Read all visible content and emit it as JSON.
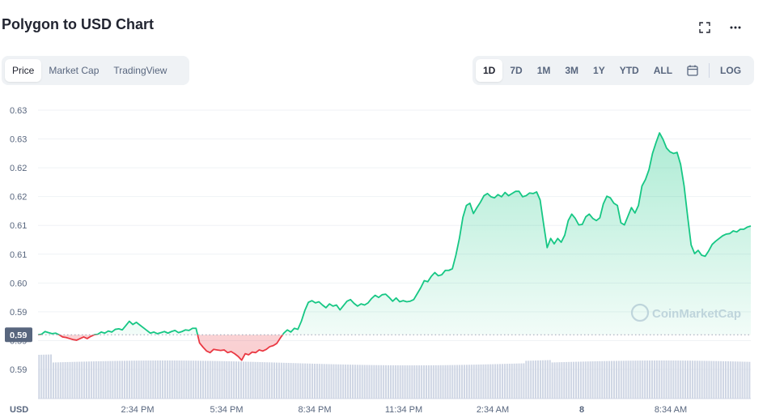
{
  "header": {
    "title": "Polygon to USD Chart",
    "fullscreen_icon": "expand-icon",
    "more_icon": "more-horizontal-icon"
  },
  "view_tabs": [
    {
      "label": "Price",
      "active": true
    },
    {
      "label": "Market Cap",
      "active": false
    },
    {
      "label": "TradingView",
      "active": false
    }
  ],
  "range_tabs": [
    {
      "label": "1D",
      "active": true
    },
    {
      "label": "7D",
      "active": false
    },
    {
      "label": "1M",
      "active": false
    },
    {
      "label": "3M",
      "active": false
    },
    {
      "label": "1Y",
      "active": false
    },
    {
      "label": "YTD",
      "active": false
    },
    {
      "label": "ALL",
      "active": false
    }
  ],
  "calendar_icon": "calendar-icon",
  "log_label": "LOG",
  "watermark": "CoinMarketCap",
  "colors": {
    "up": "#16c784",
    "down": "#ea3943",
    "volume": "#cfd6e4",
    "grid": "#eff2f5",
    "text": "#58667e"
  },
  "chart_data": {
    "type": "area",
    "currency_label": "USD",
    "y_tick_labels": [
      "0.63",
      "0.63",
      "0.62",
      "0.62",
      "0.61",
      "0.61",
      "0.60",
      "0.59",
      "0.59",
      "0.59"
    ],
    "x_tick_labels": [
      "2:34 PM",
      "5:34 PM",
      "8:34 PM",
      "11:34 PM",
      "2:34 AM",
      "8",
      "8:34 AM"
    ],
    "ylim": [
      0.587,
      0.634
    ],
    "reference_price": 0.5925,
    "reference_label": "0.59",
    "series": [
      {
        "values": [
          0.5925,
          0.5926,
          0.5931,
          0.5929,
          0.5927,
          0.5928,
          0.5925,
          0.5921,
          0.592,
          0.5918,
          0.5916,
          0.5915,
          0.5918,
          0.5921,
          0.5918,
          0.5922,
          0.5925,
          0.5926,
          0.593,
          0.5928,
          0.5932,
          0.593,
          0.5935,
          0.5936,
          0.5934,
          0.5942,
          0.595,
          0.5944,
          0.5948,
          0.5943,
          0.5938,
          0.5933,
          0.5928,
          0.593,
          0.5927,
          0.5929,
          0.5931,
          0.5928,
          0.5931,
          0.5933,
          0.5929,
          0.5931,
          0.5934,
          0.5933,
          0.5937,
          0.5937,
          0.591,
          0.5902,
          0.5895,
          0.5892,
          0.5898,
          0.5897,
          0.5896,
          0.5897,
          0.5892,
          0.5894,
          0.589,
          0.5885,
          0.5878,
          0.589,
          0.5888,
          0.5893,
          0.5892,
          0.5897,
          0.5895,
          0.5898,
          0.5903,
          0.5905,
          0.5909,
          0.5919,
          0.5928,
          0.5934,
          0.593,
          0.5937,
          0.5935,
          0.595,
          0.597,
          0.5985,
          0.5988,
          0.5984,
          0.5986,
          0.598,
          0.5975,
          0.5982,
          0.5978,
          0.598,
          0.5971,
          0.5979,
          0.5987,
          0.599,
          0.5983,
          0.5978,
          0.5982,
          0.598,
          0.5984,
          0.5992,
          0.5998,
          0.5994,
          0.5999,
          0.6,
          0.5994,
          0.5987,
          0.5993,
          0.5986,
          0.5988,
          0.5986,
          0.5987,
          0.599,
          0.6001,
          0.6012,
          0.6025,
          0.6023,
          0.6033,
          0.604,
          0.6034,
          0.6036,
          0.6044,
          0.6044,
          0.6047,
          0.6072,
          0.6103,
          0.6142,
          0.6164,
          0.6168,
          0.6149,
          0.616,
          0.617,
          0.6182,
          0.6186,
          0.618,
          0.6178,
          0.6184,
          0.618,
          0.6188,
          0.6182,
          0.6186,
          0.619,
          0.619,
          0.618,
          0.6182,
          0.6187,
          0.6186,
          0.6189,
          0.6174,
          0.6129,
          0.6086,
          0.6103,
          0.6093,
          0.6103,
          0.6096,
          0.6109,
          0.6136,
          0.6148,
          0.614,
          0.6128,
          0.6129,
          0.6143,
          0.6148,
          0.614,
          0.6136,
          0.6141,
          0.6167,
          0.6181,
          0.6178,
          0.6168,
          0.6164,
          0.6132,
          0.6128,
          0.6144,
          0.616,
          0.615,
          0.6164,
          0.62,
          0.6212,
          0.623,
          0.626,
          0.628,
          0.6298,
          0.6286,
          0.627,
          0.6263,
          0.626,
          0.6262,
          0.624,
          0.62,
          0.6144,
          0.6091,
          0.6075,
          0.6081,
          0.6072,
          0.607,
          0.608,
          0.6092,
          0.6098,
          0.6103,
          0.6108,
          0.6111,
          0.6112,
          0.6117,
          0.6115,
          0.612,
          0.612,
          0.6124,
          0.6126
        ]
      }
    ],
    "grid": true,
    "volume_bars": true
  }
}
